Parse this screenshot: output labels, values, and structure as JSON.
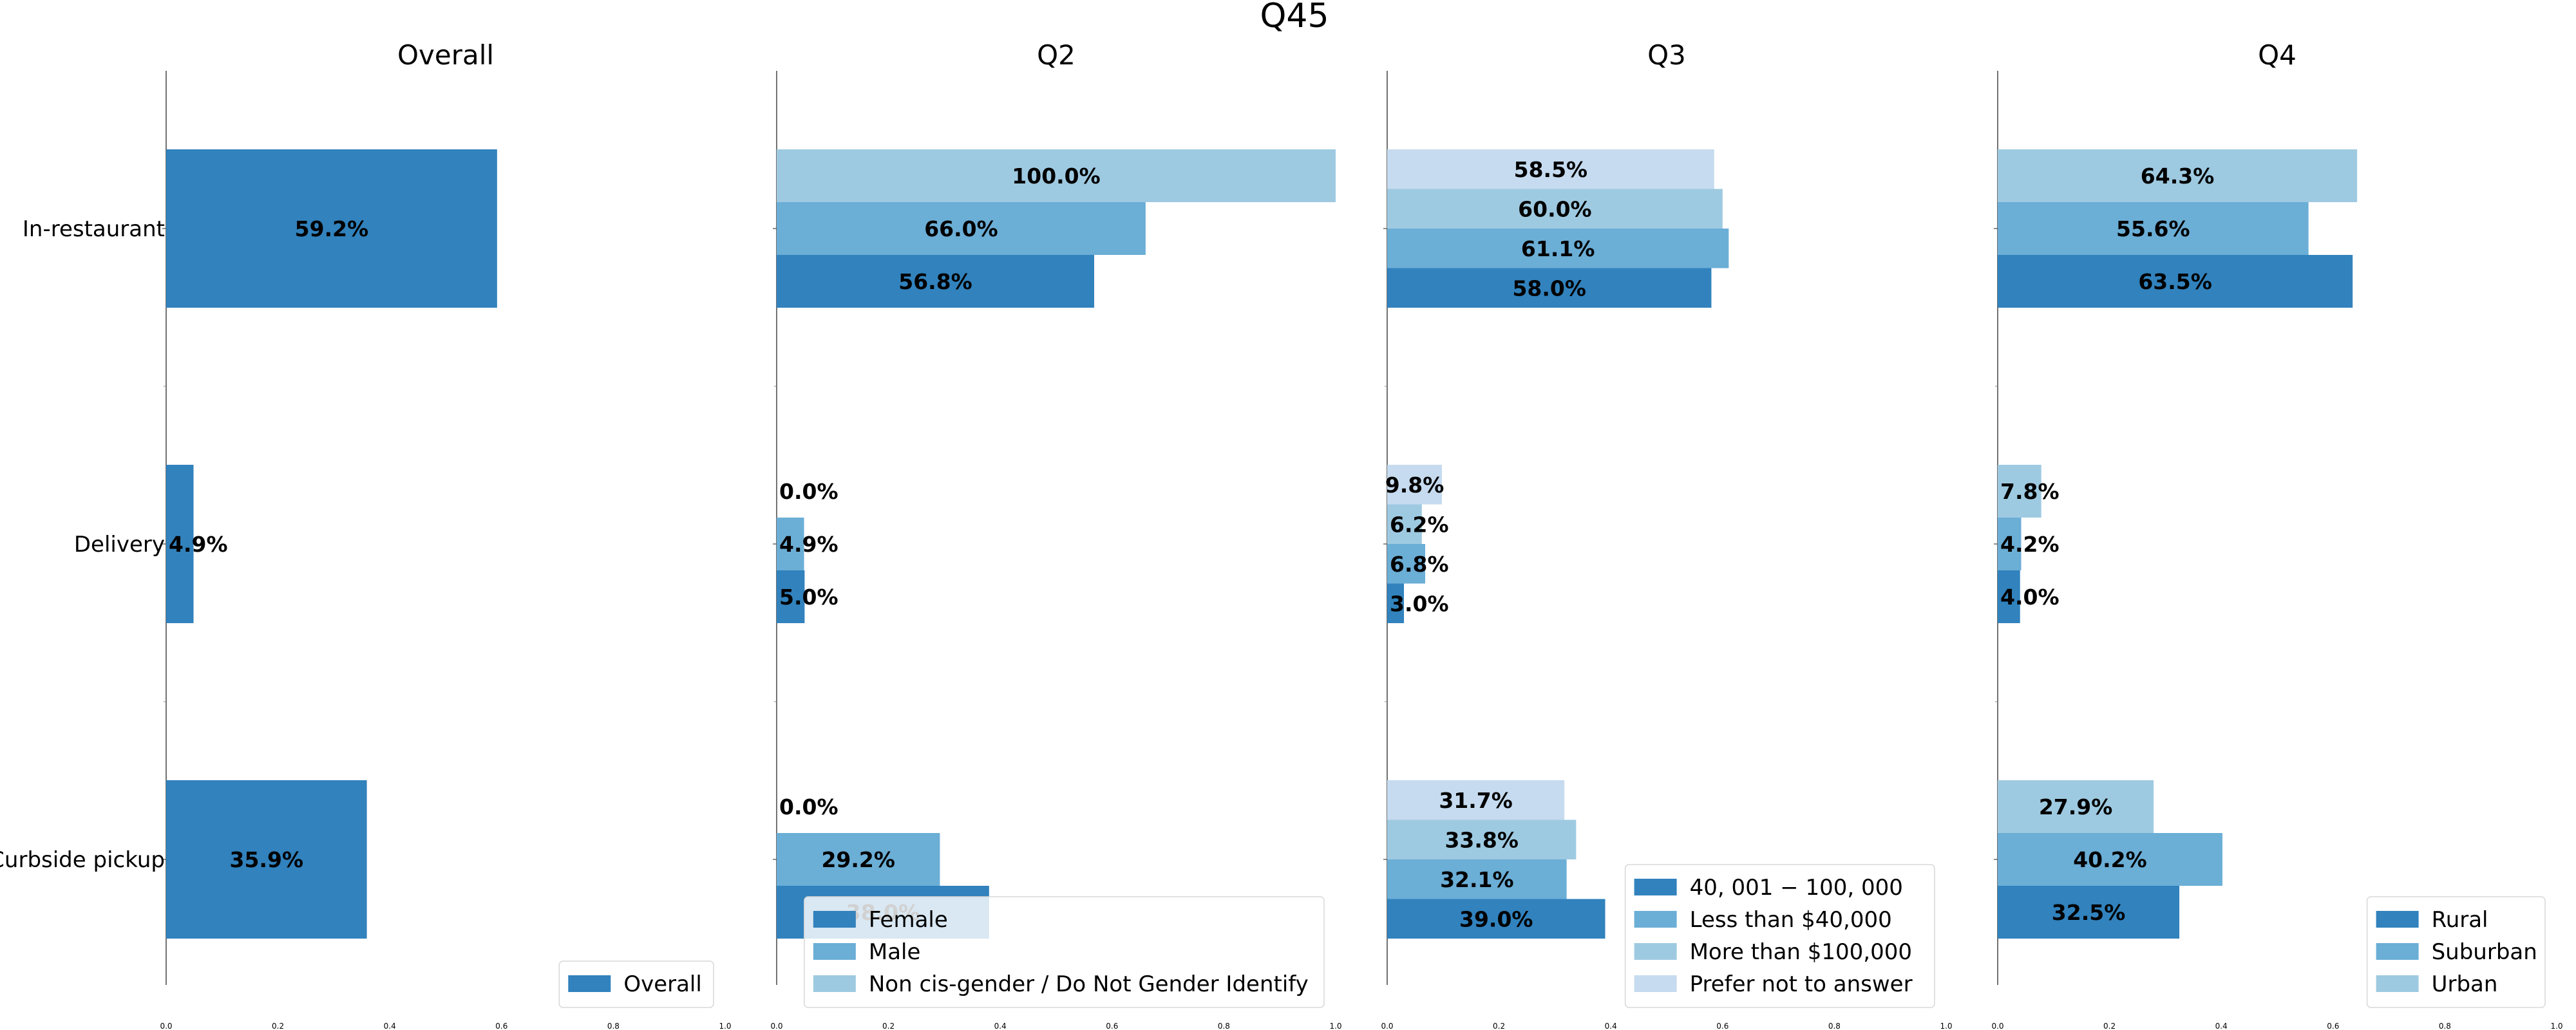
{
  "figure_title": "Q45",
  "chart_data": [
    {
      "type": "bar",
      "orientation": "horizontal",
      "title": "Overall",
      "categories": [
        "In-restaurant",
        "Delivery",
        "Curbside pickup"
      ],
      "series": [
        {
          "name": "Overall",
          "color": "#3182bd",
          "values": [
            0.592,
            0.049,
            0.359
          ],
          "labels": [
            "59.2%",
            "4.9%",
            "35.9%"
          ]
        }
      ],
      "xlim": [
        0,
        1
      ],
      "xticks": [
        "0.0",
        "0.2",
        "0.4",
        "0.6",
        "0.8",
        "1.0"
      ],
      "legend_position": "bottom-right",
      "show_category_labels": true
    },
    {
      "type": "bar",
      "orientation": "horizontal",
      "title": "Q2",
      "categories": [
        "In-restaurant",
        "Delivery",
        "Curbside pickup"
      ],
      "series": [
        {
          "name": "Female",
          "color": "#3182bd",
          "values": [
            0.568,
            0.05,
            0.38
          ],
          "labels": [
            "56.8%",
            "5.0%",
            "38.0%"
          ]
        },
        {
          "name": "Male",
          "color": "#6baed6",
          "values": [
            0.66,
            0.049,
            0.292
          ],
          "labels": [
            "66.0%",
            "4.9%",
            "29.2%"
          ]
        },
        {
          "name": "Non cis-gender / Do Not Gender Identify",
          "color": "#9ecae1",
          "values": [
            1.0,
            0.0,
            0.0
          ],
          "labels": [
            "100.0%",
            "0.0%",
            "0.0%"
          ]
        }
      ],
      "xlim": [
        0,
        1
      ],
      "xticks": [
        "0.0",
        "0.2",
        "0.4",
        "0.6",
        "0.8",
        "1.0"
      ],
      "legend_position": "bottom-right",
      "show_category_labels": false
    },
    {
      "type": "bar",
      "orientation": "horizontal",
      "title": "Q3",
      "categories": [
        "In-restaurant",
        "Delivery",
        "Curbside pickup"
      ],
      "series": [
        {
          "name": "$40,001-$100,000",
          "legend_text": "40, 001 − 100, 000",
          "color": "#3182bd",
          "values": [
            0.58,
            0.03,
            0.39
          ],
          "labels": [
            "58.0%",
            "3.0%",
            "39.0%"
          ]
        },
        {
          "name": "Less than $40,000",
          "color": "#6baed6",
          "values": [
            0.611,
            0.068,
            0.321
          ],
          "labels": [
            "61.1%",
            "6.8%",
            "32.1%"
          ]
        },
        {
          "name": "More than $100,000",
          "color": "#9ecae1",
          "values": [
            0.6,
            0.062,
            0.338
          ],
          "labels": [
            "60.0%",
            "6.2%",
            "33.8%"
          ]
        },
        {
          "name": "Prefer not to answer",
          "color": "#c6dbef",
          "values": [
            0.585,
            0.098,
            0.317
          ],
          "labels": [
            "58.5%",
            "9.8%",
            "31.7%"
          ]
        }
      ],
      "xlim": [
        0,
        1
      ],
      "xticks": [
        "0.0",
        "0.2",
        "0.4",
        "0.6",
        "0.8",
        "1.0"
      ],
      "legend_position": "bottom-right",
      "show_category_labels": false
    },
    {
      "type": "bar",
      "orientation": "horizontal",
      "title": "Q4",
      "categories": [
        "In-restaurant",
        "Delivery",
        "Curbside pickup"
      ],
      "series": [
        {
          "name": "Rural",
          "color": "#3182bd",
          "values": [
            0.635,
            0.04,
            0.325
          ],
          "labels": [
            "63.5%",
            "4.0%",
            "32.5%"
          ]
        },
        {
          "name": "Suburban",
          "color": "#6baed6",
          "values": [
            0.556,
            0.042,
            0.402
          ],
          "labels": [
            "55.6%",
            "4.2%",
            "40.2%"
          ]
        },
        {
          "name": "Urban",
          "color": "#9ecae1",
          "values": [
            0.643,
            0.078,
            0.279
          ],
          "labels": [
            "64.3%",
            "7.8%",
            "27.9%"
          ]
        }
      ],
      "xlim": [
        0,
        1
      ],
      "xticks": [
        "0.0",
        "0.2",
        "0.4",
        "0.6",
        "0.8",
        "1.0"
      ],
      "legend_position": "bottom-right",
      "show_category_labels": false
    }
  ]
}
